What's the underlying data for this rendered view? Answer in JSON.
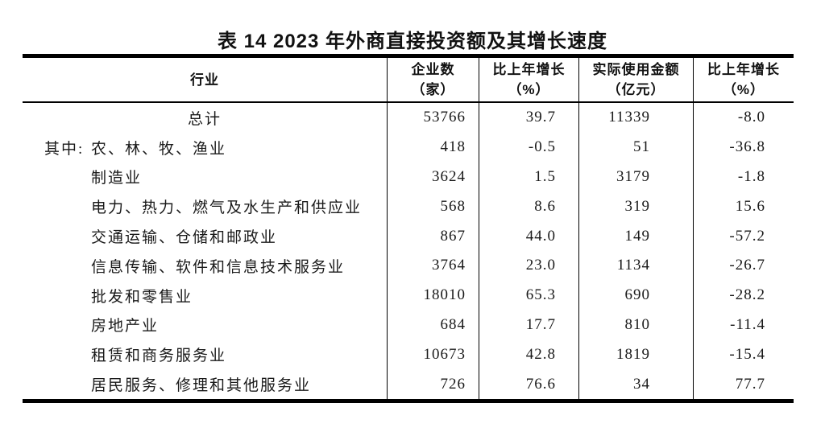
{
  "title": "表 14  2023 年外商直接投资额及其增长速度",
  "table": {
    "headers": {
      "industry": "行业",
      "enterprises": [
        "企业数",
        "（家）"
      ],
      "enterprises_growth": [
        "比上年增长",
        "（%）"
      ],
      "amount": [
        "实际使用金额",
        "（亿元）"
      ],
      "amount_growth": [
        "比上年增长",
        "（%）"
      ]
    },
    "rows": [
      {
        "label": "总计",
        "enterprises": "53766",
        "enterprises_growth": "39.7",
        "amount": "11339",
        "amount_growth": "-8.0"
      },
      {
        "prefix": "其中:",
        "label": "农、林、牧、渔业",
        "enterprises": "418",
        "enterprises_growth": "-0.5",
        "amount": "51",
        "amount_growth": "-36.8"
      },
      {
        "label": "制造业",
        "enterprises": "3624",
        "enterprises_growth": "1.5",
        "amount": "3179",
        "amount_growth": "-1.8"
      },
      {
        "label": "电力、热力、燃气及水生产和供应业",
        "enterprises": "568",
        "enterprises_growth": "8.6",
        "amount": "319",
        "amount_growth": "15.6"
      },
      {
        "label": "交通运输、仓储和邮政业",
        "enterprises": "867",
        "enterprises_growth": "44.0",
        "amount": "149",
        "amount_growth": "-57.2"
      },
      {
        "label": "信息传输、软件和信息技术服务业",
        "enterprises": "3764",
        "enterprises_growth": "23.0",
        "amount": "1134",
        "amount_growth": "-26.7"
      },
      {
        "label": "批发和零售业",
        "enterprises": "18010",
        "enterprises_growth": "65.3",
        "amount": "690",
        "amount_growth": "-28.2"
      },
      {
        "label": "房地产业",
        "enterprises": "684",
        "enterprises_growth": "17.7",
        "amount": "810",
        "amount_growth": "-11.4"
      },
      {
        "label": "租赁和商务服务业",
        "enterprises": "10673",
        "enterprises_growth": "42.8",
        "amount": "1819",
        "amount_growth": "-15.4"
      },
      {
        "label": "居民服务、修理和其他服务业",
        "enterprises": "726",
        "enterprises_growth": "76.6",
        "amount": "34",
        "amount_growth": "77.7"
      }
    ]
  }
}
